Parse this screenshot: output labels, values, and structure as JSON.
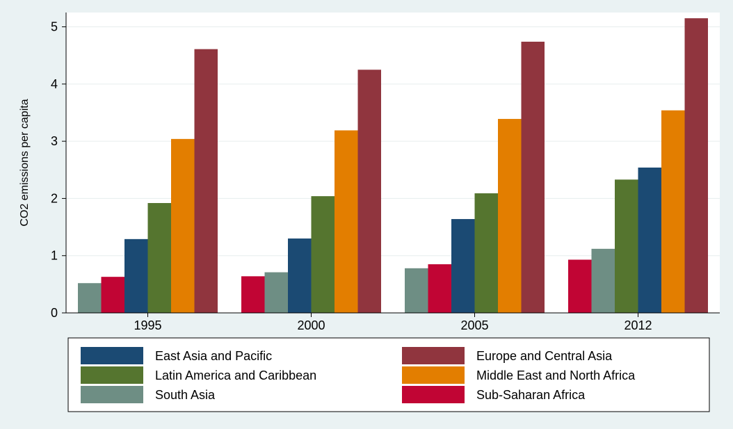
{
  "chart_data": {
    "type": "bar",
    "ylabel": "CO2 emissions per capita",
    "xlabel": "",
    "title": "",
    "ylim": [
      0,
      5.25
    ],
    "yticks": [
      0,
      1,
      2,
      3,
      4,
      5
    ],
    "grid": true,
    "legend_position": "bottom",
    "groups": [
      {
        "label": "1995",
        "bars": [
          {
            "series": "South Asia",
            "value": 0.52
          },
          {
            "series": "Sub-Saharan Africa",
            "value": 0.63
          },
          {
            "series": "East Asia and Pacific",
            "value": 1.29
          },
          {
            "series": "Latin America and Caribbean",
            "value": 1.92
          },
          {
            "series": "Middle East and North Africa",
            "value": 3.04
          },
          {
            "series": "Europe and Central Asia",
            "value": 4.61
          }
        ]
      },
      {
        "label": "2000",
        "bars": [
          {
            "series": "Sub-Saharan Africa",
            "value": 0.64
          },
          {
            "series": "South Asia",
            "value": 0.71
          },
          {
            "series": "East Asia and Pacific",
            "value": 1.3
          },
          {
            "series": "Latin America and Caribbean",
            "value": 2.04
          },
          {
            "series": "Middle East and North Africa",
            "value": 3.19
          },
          {
            "series": "Europe and Central Asia",
            "value": 4.25
          }
        ]
      },
      {
        "label": "2005",
        "bars": [
          {
            "series": "South Asia",
            "value": 0.78
          },
          {
            "series": "Sub-Saharan Africa",
            "value": 0.85
          },
          {
            "series": "East Asia and Pacific",
            "value": 1.64
          },
          {
            "series": "Latin America and Caribbean",
            "value": 2.09
          },
          {
            "series": "Middle East and North Africa",
            "value": 3.39
          },
          {
            "series": "Europe and Central Asia",
            "value": 4.74
          }
        ]
      },
      {
        "label": "2012",
        "bars": [
          {
            "series": "Sub-Saharan Africa",
            "value": 0.93
          },
          {
            "series": "South Asia",
            "value": 1.12
          },
          {
            "series": "Latin America and Caribbean",
            "value": 2.33
          },
          {
            "series": "East Asia and Pacific",
            "value": 2.54
          },
          {
            "series": "Middle East and North Africa",
            "value": 3.54
          },
          {
            "series": "Europe and Central Asia",
            "value": 5.15
          }
        ]
      }
    ],
    "series": [
      {
        "name": "East Asia and Pacific",
        "color": "#1b4a73"
      },
      {
        "name": "Europe and Central Asia",
        "color": "#90353e"
      },
      {
        "name": "Latin America and Caribbean",
        "color": "#55752f"
      },
      {
        "name": "Middle East and North Africa",
        "color": "#e37e00"
      },
      {
        "name": "South Asia",
        "color": "#6e8e84"
      },
      {
        "name": "Sub-Saharan Africa",
        "color": "#c10534"
      }
    ]
  }
}
